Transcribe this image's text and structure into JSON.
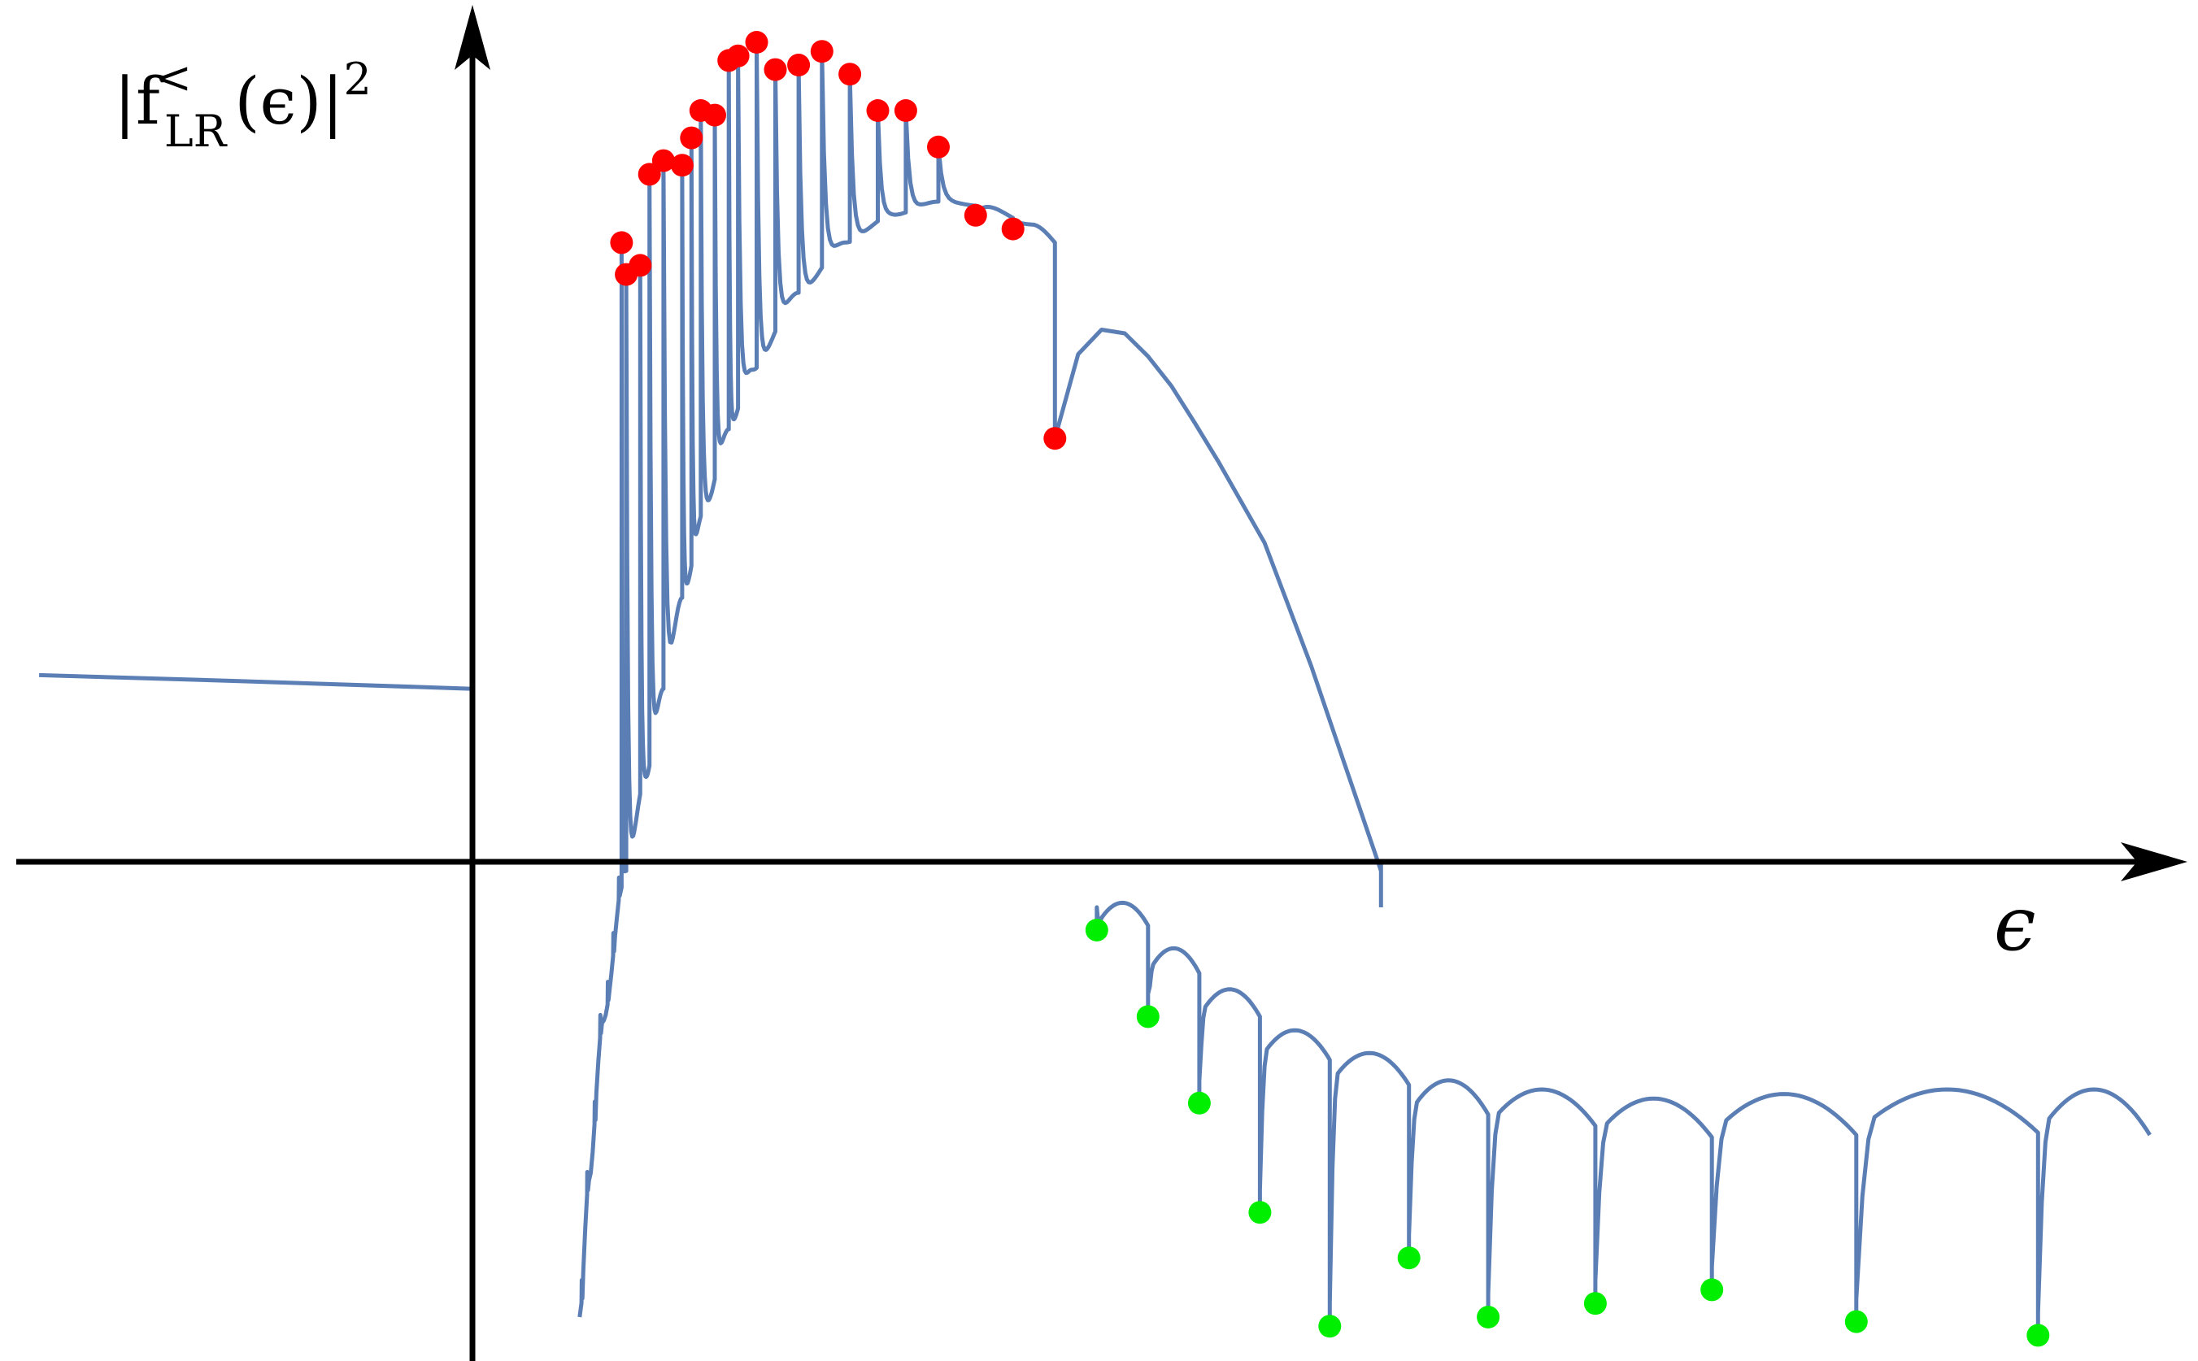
{
  "chart_data": {
    "type": "line",
    "title": "",
    "xlabel": "ϵ",
    "ylabel": {
      "prefix": "|f",
      "superscript": "<",
      "subscript": "LR",
      "suffix": "(ϵ)|",
      "power": "2"
    },
    "xlim": [
      -1.0,
      3.7
    ],
    "ylim": [
      -1.0,
      1.95
    ],
    "grid": false,
    "tick_labels": false,
    "colors": {
      "curve": "#5b7fb5",
      "red_markers": "#ff0000",
      "green_markers": "#00ee00",
      "axes": "#000000"
    },
    "series": [
      {
        "points": [
          [
            -0.93,
            0.41
          ],
          [
            -0.5,
            0.397
          ],
          [
            0.0,
            0.38
          ],
          [
            0.23,
            -1.0
          ],
          [
            0.25,
            -0.7
          ],
          [
            0.28,
            -0.35
          ],
          [
            0.33,
            0.0
          ],
          [
            0.37,
            0.2
          ],
          [
            0.41,
            0.4
          ],
          [
            0.45,
            0.6
          ],
          [
            0.5,
            0.8
          ],
          [
            0.55,
            0.97
          ],
          [
            0.6,
            1.1
          ],
          [
            0.7,
            1.27
          ],
          [
            0.8,
            1.38
          ],
          [
            0.9,
            1.44
          ],
          [
            1.0,
            1.47
          ],
          [
            1.1,
            1.46
          ],
          [
            1.2,
            1.42
          ],
          [
            1.3,
            1.34
          ],
          [
            1.4,
            1.22
          ],
          [
            1.5,
            1.07
          ],
          [
            1.6,
            0.9
          ],
          [
            1.7,
            0.72
          ],
          [
            1.8,
            0.45
          ],
          [
            1.9,
            0.15
          ],
          [
            1.95,
            0.0
          ]
        ]
      }
    ],
    "red_peaks": [
      [
        0.32,
        1.36
      ],
      [
        0.33,
        1.29
      ],
      [
        0.36,
        1.31
      ],
      [
        0.38,
        1.51
      ],
      [
        0.41,
        1.54
      ],
      [
        0.45,
        1.53
      ],
      [
        0.47,
        1.59
      ],
      [
        0.49,
        1.65
      ],
      [
        0.52,
        1.64
      ],
      [
        0.55,
        1.76
      ],
      [
        0.57,
        1.77
      ],
      [
        0.61,
        1.8
      ],
      [
        0.65,
        1.74
      ],
      [
        0.7,
        1.75
      ],
      [
        0.75,
        1.78
      ],
      [
        0.81,
        1.73
      ],
      [
        0.87,
        1.65
      ],
      [
        0.93,
        1.65
      ],
      [
        1.0,
        1.57
      ],
      [
        1.08,
        1.42
      ],
      [
        1.16,
        1.39
      ],
      [
        1.25,
        0.93
      ]
    ],
    "green_dips": [
      [
        1.34,
        -0.15
      ],
      [
        1.45,
        -0.34
      ],
      [
        1.56,
        -0.53
      ],
      [
        1.69,
        -0.77
      ],
      [
        1.84,
        -1.02
      ],
      [
        2.01,
        -0.87
      ],
      [
        2.18,
        -1.0
      ],
      [
        2.41,
        -0.97
      ],
      [
        2.66,
        -0.94
      ],
      [
        2.97,
        -1.01
      ],
      [
        3.36,
        -1.04
      ]
    ]
  }
}
